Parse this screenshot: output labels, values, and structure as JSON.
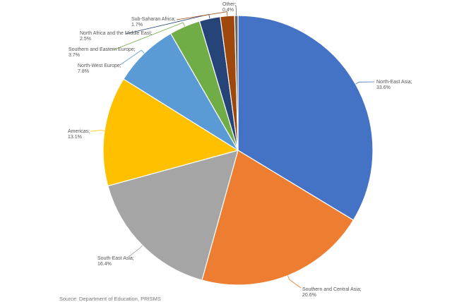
{
  "chart_data": {
    "type": "pie",
    "title": "",
    "slices": [
      {
        "name": "North-East Asia",
        "value": 33.6,
        "label_value": "33.6%",
        "color": "#4472C4"
      },
      {
        "name": "Southern and Central Asia",
        "value": 20.6,
        "label_value": "20.6%",
        "color": "#ED7D31"
      },
      {
        "name": "South-East Asia",
        "value": 16.4,
        "label_value": "16.4%",
        "color": "#A5A5A5"
      },
      {
        "name": "Americas",
        "value": 13.1,
        "label_value": "13.1%",
        "color": "#FFC000"
      },
      {
        "name": "North-West Europe",
        "value": 7.8,
        "label_value": "7.8%",
        "color": "#5B9BD5"
      },
      {
        "name": "Southern and Eastern Europe",
        "value": 3.7,
        "label_value": "3.7%",
        "color": "#70AD47"
      },
      {
        "name": "North Africa and the Middle East",
        "value": 2.5,
        "label_value": "2.5%",
        "color": "#264478"
      },
      {
        "name": "Sub-Saharan Africa",
        "value": 1.7,
        "label_value": "1.7%",
        "color": "#9E480E"
      },
      {
        "name": "Other",
        "value": 0.4,
        "label_value": "0.4%",
        "color": "#636363"
      }
    ],
    "start": "12 o'clock",
    "direction": "clockwise",
    "legend": "none",
    "source": "Source: Department of Education, PRISMS"
  }
}
